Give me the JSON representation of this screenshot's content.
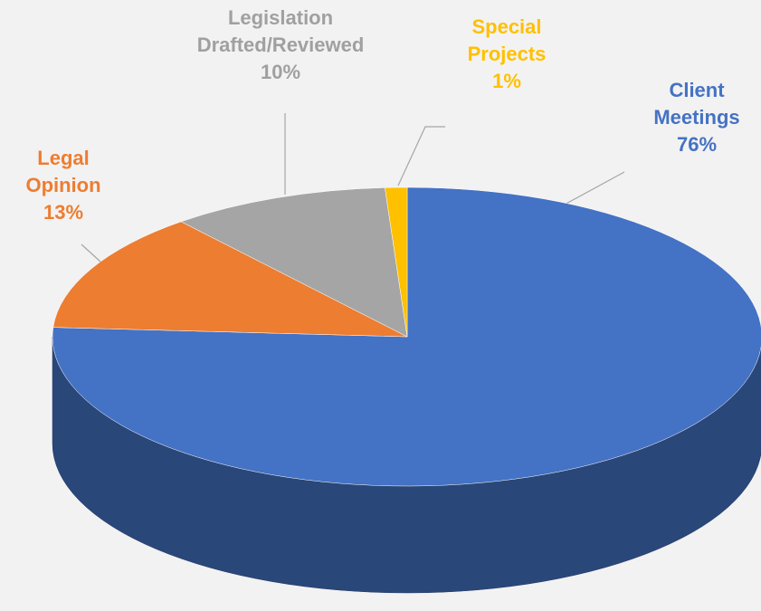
{
  "chart_data": {
    "type": "pie",
    "categories": [
      "Client Meetings",
      "Legal Opinion",
      "Legislation Drafted/Reviewed",
      "Special Projects"
    ],
    "values": [
      76,
      13,
      10,
      1
    ],
    "value_labels": [
      "76%",
      "13%",
      "10%",
      "1%"
    ],
    "colors": [
      "#4472c4",
      "#ed7d31",
      "#a5a5a5",
      "#ffc000"
    ]
  }
}
